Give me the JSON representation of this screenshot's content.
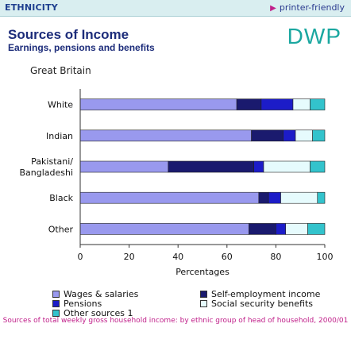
{
  "header": {
    "section": "ETHNICITY",
    "printer_link": "printer-friendly"
  },
  "title": "Sources of Income",
  "subtitle": "Earnings, pensions and benefits",
  "logo": "DWP",
  "region": "Great Britain",
  "colors": {
    "wages": "#9999ee",
    "self_employment": "#1a1a6e",
    "pensions": "#1c1cc8",
    "social_security": "#e6fbfd",
    "other": "#33c3cc"
  },
  "chart_data": {
    "type": "bar",
    "orientation": "horizontal",
    "stacked": true,
    "categories": [
      "White",
      "Indian",
      "Pakistani/\nBangladeshi",
      "Black",
      "Other"
    ],
    "series": [
      {
        "name": "Wages & salaries",
        "values": [
          64,
          70,
          36,
          73,
          69
        ]
      },
      {
        "name": "Self-employment income",
        "values": [
          10,
          13,
          35,
          4,
          11
        ]
      },
      {
        "name": "Pensions",
        "values": [
          13,
          5,
          4,
          5,
          4
        ]
      },
      {
        "name": "Social security benefits",
        "values": [
          7,
          7,
          19,
          15,
          9
        ]
      },
      {
        "name": "Other sources 1",
        "values": [
          6,
          5,
          6,
          3,
          7
        ]
      }
    ],
    "xlabel": "Percentages",
    "xlim": [
      0,
      100
    ],
    "xticks": [
      0,
      20,
      40,
      60,
      80,
      100
    ],
    "legend_position": "bottom",
    "footnote": "Sources of total weekly gross household income: by ethnic group of head of household, 2000/01"
  }
}
